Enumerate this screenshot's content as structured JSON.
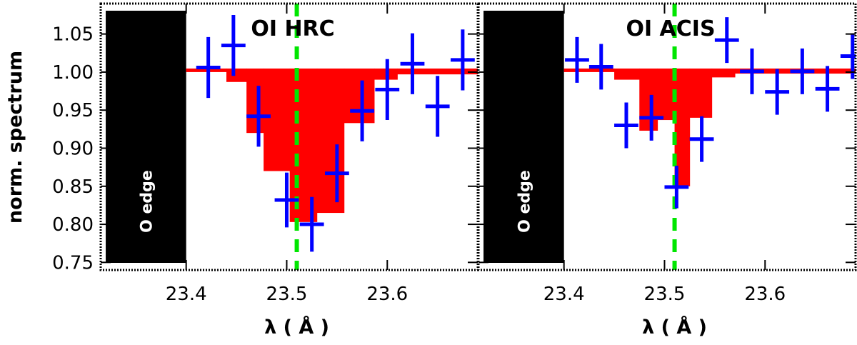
{
  "chart_data": [
    {
      "type": "line",
      "title": "OI HRC",
      "xlabel": "λ ( Å )",
      "ylabel": "norm. spectrum",
      "xlim": [
        23.315,
        23.69
      ],
      "ylim": [
        0.74,
        1.09
      ],
      "xticks": [
        "23.4",
        "23.5",
        "23.6"
      ],
      "yticks": [
        "0.75",
        "0.80",
        "0.85",
        "0.90",
        "0.95",
        "1.00",
        "1.05"
      ],
      "edge_label": "O edge",
      "edge_region": [
        23.32,
        23.4
      ],
      "reference_line_x": 23.51,
      "model_steps": [
        {
          "x0": 23.4,
          "x1": 23.44,
          "y": 1.0
        },
        {
          "x0": 23.44,
          "x1": 23.46,
          "y": 0.987
        },
        {
          "x0": 23.46,
          "x1": 23.477,
          "y": 0.92
        },
        {
          "x0": 23.477,
          "x1": 23.503,
          "y": 0.87
        },
        {
          "x0": 23.503,
          "x1": 23.53,
          "y": 0.803
        },
        {
          "x0": 23.53,
          "x1": 23.557,
          "y": 0.815
        },
        {
          "x0": 23.557,
          "x1": 23.587,
          "y": 0.933
        },
        {
          "x0": 23.587,
          "x1": 23.61,
          "y": 0.99
        },
        {
          "x0": 23.61,
          "x1": 23.69,
          "y": 0.997
        }
      ],
      "data_points": [
        {
          "x": 23.422,
          "y": 1.006,
          "xerr": 0.012,
          "yerr": 0.04
        },
        {
          "x": 23.447,
          "y": 1.035,
          "xerr": 0.012,
          "yerr": 0.04
        },
        {
          "x": 23.472,
          "y": 0.942,
          "xerr": 0.012,
          "yerr": 0.04
        },
        {
          "x": 23.5,
          "y": 0.832,
          "xerr": 0.012,
          "yerr": 0.036
        },
        {
          "x": 23.525,
          "y": 0.8,
          "xerr": 0.012,
          "yerr": 0.036
        },
        {
          "x": 23.55,
          "y": 0.867,
          "xerr": 0.012,
          "yerr": 0.038
        },
        {
          "x": 23.575,
          "y": 0.949,
          "xerr": 0.012,
          "yerr": 0.04
        },
        {
          "x": 23.6,
          "y": 0.977,
          "xerr": 0.012,
          "yerr": 0.04
        },
        {
          "x": 23.625,
          "y": 1.011,
          "xerr": 0.012,
          "yerr": 0.04
        },
        {
          "x": 23.65,
          "y": 0.955,
          "xerr": 0.012,
          "yerr": 0.04
        },
        {
          "x": 23.675,
          "y": 1.016,
          "xerr": 0.012,
          "yerr": 0.04
        }
      ]
    },
    {
      "type": "line",
      "title": "OI ACIS",
      "xlabel": "λ ( Å )",
      "ylabel": "",
      "xlim": [
        23.315,
        23.69
      ],
      "ylim": [
        0.74,
        1.09
      ],
      "xticks": [
        "23.4",
        "23.5",
        "23.6"
      ],
      "yticks": [],
      "edge_label": "O edge",
      "edge_region": [
        23.32,
        23.4
      ],
      "reference_line_x": 23.51,
      "model_steps": [
        {
          "x0": 23.4,
          "x1": 23.45,
          "y": 1.0
        },
        {
          "x0": 23.45,
          "x1": 23.475,
          "y": 0.99
        },
        {
          "x0": 23.475,
          "x1": 23.493,
          "y": 0.923
        },
        {
          "x0": 23.493,
          "x1": 23.51,
          "y": 0.937
        },
        {
          "x0": 23.51,
          "x1": 23.525,
          "y": 0.85
        },
        {
          "x0": 23.525,
          "x1": 23.547,
          "y": 0.94
        },
        {
          "x0": 23.547,
          "x1": 23.57,
          "y": 0.993
        },
        {
          "x0": 23.57,
          "x1": 23.69,
          "y": 0.998
        }
      ],
      "data_points": [
        {
          "x": 23.413,
          "y": 1.016,
          "xerr": 0.012,
          "yerr": 0.03
        },
        {
          "x": 23.437,
          "y": 1.007,
          "xerr": 0.012,
          "yerr": 0.03
        },
        {
          "x": 23.462,
          "y": 0.93,
          "xerr": 0.012,
          "yerr": 0.03
        },
        {
          "x": 23.487,
          "y": 0.94,
          "xerr": 0.012,
          "yerr": 0.03
        },
        {
          "x": 23.512,
          "y": 0.849,
          "xerr": 0.012,
          "yerr": 0.028
        },
        {
          "x": 23.537,
          "y": 0.912,
          "xerr": 0.012,
          "yerr": 0.03
        },
        {
          "x": 23.562,
          "y": 1.042,
          "xerr": 0.012,
          "yerr": 0.03
        },
        {
          "x": 23.587,
          "y": 1.001,
          "xerr": 0.012,
          "yerr": 0.03
        },
        {
          "x": 23.612,
          "y": 0.974,
          "xerr": 0.012,
          "yerr": 0.03
        },
        {
          "x": 23.637,
          "y": 1.001,
          "xerr": 0.012,
          "yerr": 0.03
        },
        {
          "x": 23.662,
          "y": 0.978,
          "xerr": 0.012,
          "yerr": 0.03
        },
        {
          "x": 23.687,
          "y": 1.021,
          "xerr": 0.012,
          "yerr": 0.03
        }
      ]
    }
  ],
  "colors": {
    "model_fill": "#ff0000",
    "data_points": "#0000ff",
    "reference_line": "#00e600",
    "edge_block": "#000000",
    "axes": "#000000"
  }
}
